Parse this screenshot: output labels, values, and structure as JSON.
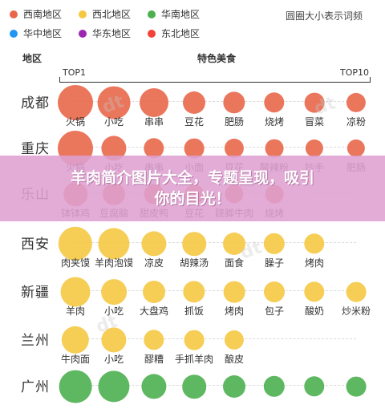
{
  "legend": {
    "items": [
      {
        "label": "西南地区",
        "color": "#e8674a"
      },
      {
        "label": "西北地区",
        "color": "#f5c842"
      },
      {
        "label": "华南地区",
        "color": "#4caf50"
      },
      {
        "label": "华中地区",
        "color": "#2196f3"
      },
      {
        "label": "华东地区",
        "color": "#9c27b0"
      },
      {
        "label": "东北地区",
        "color": "#f44336"
      }
    ],
    "note": "圆圈大小表示词频"
  },
  "header": {
    "region_col": "地区",
    "food_col": "特色美食",
    "rank_start": "TOP1",
    "rank_end": "TOP10"
  },
  "rows": [
    {
      "region": "成都",
      "color": "#e8674a",
      "items": [
        {
          "name": "火锅",
          "size": 1.0
        },
        {
          "name": "小吃",
          "size": 0.9
        },
        {
          "name": "串串",
          "size": 0.75
        },
        {
          "name": "豆花",
          "size": 0.5
        },
        {
          "name": "肥肠",
          "size": 0.48
        },
        {
          "name": "烧烤",
          "size": 0.42
        },
        {
          "name": "冒菜",
          "size": 0.4
        },
        {
          "name": "凉粉",
          "size": 0.38
        }
      ]
    },
    {
      "region": "重庆",
      "color": "#e8674a",
      "items": [
        {
          "name": "火锅",
          "size": 1.0
        },
        {
          "name": "小吃",
          "size": 0.6
        },
        {
          "name": "串串",
          "size": 0.42
        },
        {
          "name": "小面",
          "size": 0.4
        },
        {
          "name": "豆花",
          "size": 0.38
        },
        {
          "name": "酸辣粉",
          "size": 0.34
        },
        {
          "name": "抄手",
          "size": 0.32
        },
        {
          "name": "肥肠",
          "size": 0.32
        }
      ]
    },
    {
      "region": "乐山",
      "color": "#e8674a",
      "items": [
        {
          "name": "钵钵鸡",
          "size": 0.55
        },
        {
          "name": "豆腐脑",
          "size": 0.5
        },
        {
          "name": "甜皮鸭",
          "size": 0.4
        },
        {
          "name": "豆花",
          "size": 0.36
        },
        {
          "name": "跷脚牛肉",
          "size": 0.35
        },
        {
          "name": "烧烤",
          "size": 0.33
        }
      ]
    },
    {
      "region": "西安",
      "color": "#f5c842",
      "items": [
        {
          "name": "肉夹馍",
          "size": 0.95
        },
        {
          "name": "羊肉泡馍",
          "size": 0.85
        },
        {
          "name": "凉皮",
          "size": 0.6
        },
        {
          "name": "胡辣汤",
          "size": 0.55
        },
        {
          "name": "面食",
          "size": 0.5
        },
        {
          "name": "臊子",
          "size": 0.45
        },
        {
          "name": "烤肉",
          "size": 0.42
        }
      ]
    },
    {
      "region": "新疆",
      "color": "#f5c842",
      "items": [
        {
          "name": "羊肉",
          "size": 0.78
        },
        {
          "name": "小吃",
          "size": 0.62
        },
        {
          "name": "大盘鸡",
          "size": 0.5
        },
        {
          "name": "抓饭",
          "size": 0.48
        },
        {
          "name": "烤肉",
          "size": 0.46
        },
        {
          "name": "包子",
          "size": 0.44
        },
        {
          "name": "酸奶",
          "size": 0.42
        },
        {
          "name": "炒米粉",
          "size": 0.4
        }
      ]
    },
    {
      "region": "兰州",
      "color": "#f5c842",
      "items": [
        {
          "name": "牛肉面",
          "size": 0.7
        },
        {
          "name": "小吃",
          "size": 0.6
        },
        {
          "name": "醪糟",
          "size": 0.42
        },
        {
          "name": "手抓羊肉",
          "size": 0.4
        },
        {
          "name": "酿皮",
          "size": 0.38
        }
      ]
    },
    {
      "region": "广州",
      "color": "#4caf50",
      "items": [
        {
          "name": "",
          "size": 0.9
        },
        {
          "name": "",
          "size": 0.85
        },
        {
          "name": "",
          "size": 0.6
        },
        {
          "name": "",
          "size": 0.55
        },
        {
          "name": "",
          "size": 0.5
        },
        {
          "name": "",
          "size": 0.45
        },
        {
          "name": "",
          "size": 0.42
        },
        {
          "name": "",
          "size": 0.4
        }
      ]
    }
  ],
  "banner": {
    "line1": "羊肉简介图片大全，专题呈现，吸引",
    "line2": "你的目光！"
  }
}
